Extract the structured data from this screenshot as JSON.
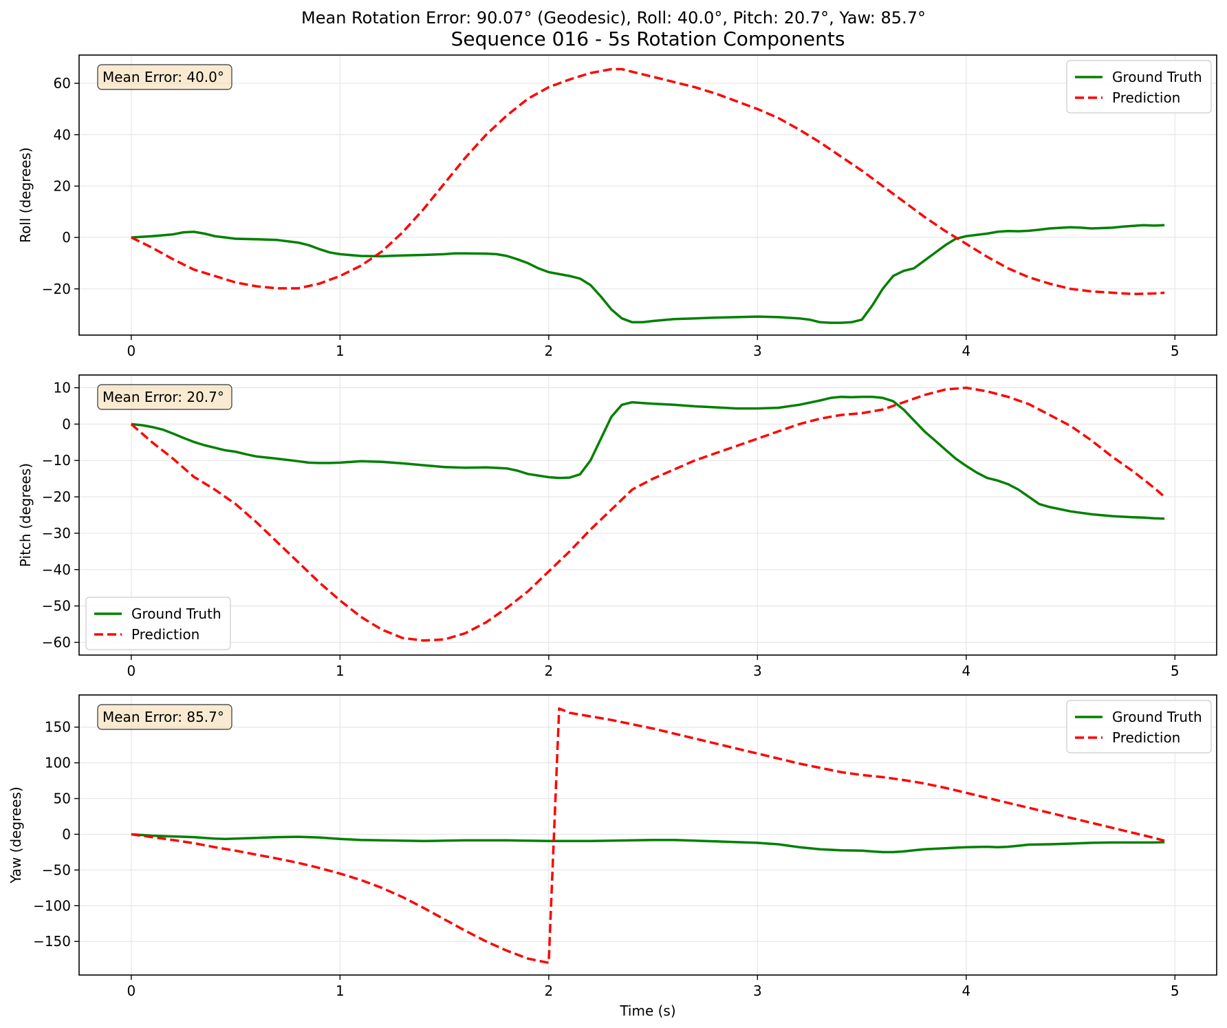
{
  "suptitle": "Mean Rotation Error: 90.07° (Geodesic), Roll: 40.0°, Pitch: 20.7°, Yaw: 85.7°",
  "title": "Sequence 016 - 5s Rotation Components",
  "xlabel": "Time (s)",
  "colors": {
    "ground_truth": "#008000",
    "prediction": "#ff0000",
    "error_box_fill": "#f5deb3"
  },
  "chart_data": [
    {
      "type": "line",
      "ylabel": "Roll (degrees)",
      "annotation": "Mean Error: 40.0°",
      "legend_location": "upper right",
      "xlim": [
        -0.25,
        5.2
      ],
      "ylim": [
        -38,
        71
      ],
      "xticks": [
        0,
        1,
        2,
        3,
        4,
        5
      ],
      "yticks": [
        -20,
        0,
        20,
        40,
        60
      ],
      "grid": true,
      "series": [
        {
          "name": "Ground Truth",
          "style": "solid",
          "x": [
            0,
            0.1,
            0.2,
            0.25,
            0.3,
            0.35,
            0.4,
            0.5,
            0.6,
            0.7,
            0.8,
            0.85,
            0.9,
            0.95,
            1.0,
            1.1,
            1.2,
            1.3,
            1.4,
            1.5,
            1.55,
            1.6,
            1.7,
            1.75,
            1.8,
            1.85,
            1.9,
            1.95,
            2.0,
            2.1,
            2.15,
            2.2,
            2.25,
            2.3,
            2.35,
            2.4,
            2.45,
            2.5,
            2.6,
            2.7,
            2.8,
            2.9,
            3.0,
            3.1,
            3.2,
            3.25,
            3.3,
            3.35,
            3.4,
            3.45,
            3.5,
            3.55,
            3.6,
            3.65,
            3.7,
            3.75,
            3.8,
            3.85,
            3.9,
            3.95,
            4.0,
            4.1,
            4.15,
            4.2,
            4.25,
            4.3,
            4.35,
            4.4,
            4.5,
            4.55,
            4.6,
            4.7,
            4.75,
            4.8,
            4.85,
            4.9,
            4.95
          ],
          "y": [
            0,
            0.5,
            1.2,
            2.0,
            2.2,
            1.5,
            0.5,
            -0.5,
            -0.7,
            -1.0,
            -2.0,
            -3.0,
            -4.5,
            -5.8,
            -6.5,
            -7.2,
            -7.3,
            -7.0,
            -6.8,
            -6.5,
            -6.2,
            -6.2,
            -6.3,
            -6.5,
            -7.2,
            -8.5,
            -10.0,
            -12.0,
            -13.5,
            -15.0,
            -16.0,
            -18.5,
            -23.0,
            -28.0,
            -31.5,
            -33.0,
            -33.0,
            -32.5,
            -31.8,
            -31.5,
            -31.2,
            -31.0,
            -30.8,
            -31.0,
            -31.5,
            -32.0,
            -33.0,
            -33.2,
            -33.2,
            -33.0,
            -32.0,
            -26.5,
            -20.0,
            -15.0,
            -13.0,
            -12.0,
            -9.0,
            -6.0,
            -3.0,
            -0.5,
            0.5,
            1.5,
            2.2,
            2.5,
            2.4,
            2.6,
            3.0,
            3.5,
            4.0,
            3.8,
            3.5,
            3.8,
            4.2,
            4.5,
            4.8,
            4.6,
            4.8
          ]
        },
        {
          "name": "Prediction",
          "style": "dashed",
          "x": [
            0,
            0.1,
            0.2,
            0.3,
            0.4,
            0.5,
            0.6,
            0.7,
            0.8,
            0.9,
            1.0,
            1.1,
            1.2,
            1.3,
            1.4,
            1.5,
            1.6,
            1.7,
            1.8,
            1.9,
            2.0,
            2.1,
            2.2,
            2.3,
            2.35,
            2.4,
            2.5,
            2.6,
            2.7,
            2.8,
            2.9,
            3.0,
            3.1,
            3.2,
            3.3,
            3.4,
            3.5,
            3.6,
            3.7,
            3.8,
            3.9,
            4.0,
            4.1,
            4.2,
            4.3,
            4.4,
            4.5,
            4.6,
            4.7,
            4.8,
            4.9,
            4.95
          ],
          "y": [
            0,
            -4,
            -8.5,
            -12.5,
            -15,
            -17.5,
            -19,
            -19.8,
            -19.8,
            -18,
            -15,
            -11,
            -5.5,
            2,
            11,
            21,
            31,
            40,
            47.5,
            54,
            58.5,
            61.5,
            64,
            65.5,
            65.5,
            64.5,
            62.5,
            60.5,
            58.5,
            56,
            53,
            50,
            46.5,
            42,
            37,
            31.5,
            26,
            20,
            14,
            8,
            2.5,
            -2.5,
            -7.5,
            -12,
            -15.5,
            -18,
            -20,
            -21,
            -21.5,
            -22,
            -21.8,
            -21.5
          ]
        }
      ]
    },
    {
      "type": "line",
      "ylabel": "Pitch (degrees)",
      "annotation": "Mean Error: 20.7°",
      "legend_location": "lower left",
      "xlim": [
        -0.25,
        5.2
      ],
      "ylim": [
        -63.5,
        13.5
      ],
      "xticks": [
        0,
        1,
        2,
        3,
        4,
        5
      ],
      "yticks": [
        -60,
        -50,
        -40,
        -30,
        -20,
        -10,
        0,
        10
      ],
      "grid": true,
      "series": [
        {
          "name": "Ground Truth",
          "style": "solid",
          "x": [
            0,
            0.05,
            0.1,
            0.15,
            0.2,
            0.25,
            0.3,
            0.35,
            0.4,
            0.45,
            0.5,
            0.55,
            0.6,
            0.65,
            0.7,
            0.8,
            0.85,
            0.9,
            0.95,
            1.0,
            1.1,
            1.2,
            1.3,
            1.4,
            1.5,
            1.6,
            1.7,
            1.8,
            1.85,
            1.9,
            2.0,
            2.05,
            2.1,
            2.15,
            2.2,
            2.25,
            2.3,
            2.35,
            2.4,
            2.45,
            2.5,
            2.6,
            2.7,
            2.8,
            2.9,
            3.0,
            3.1,
            3.2,
            3.3,
            3.35,
            3.4,
            3.45,
            3.5,
            3.55,
            3.6,
            3.65,
            3.7,
            3.75,
            3.8,
            3.85,
            3.9,
            3.95,
            4.0,
            4.05,
            4.1,
            4.15,
            4.2,
            4.25,
            4.3,
            4.35,
            4.4,
            4.5,
            4.6,
            4.7,
            4.8,
            4.85,
            4.9,
            4.95
          ],
          "y": [
            0,
            -0.3,
            -0.8,
            -1.5,
            -2.6,
            -3.8,
            -4.9,
            -5.8,
            -6.5,
            -7.2,
            -7.6,
            -8.3,
            -8.9,
            -9.2,
            -9.5,
            -10.2,
            -10.6,
            -10.7,
            -10.7,
            -10.6,
            -10.2,
            -10.4,
            -10.8,
            -11.3,
            -11.8,
            -12.0,
            -11.9,
            -12.2,
            -12.8,
            -13.7,
            -14.6,
            -14.8,
            -14.7,
            -13.8,
            -10.0,
            -4.0,
            2.0,
            5.3,
            6.0,
            5.8,
            5.6,
            5.3,
            4.9,
            4.6,
            4.3,
            4.3,
            4.5,
            5.3,
            6.5,
            7.2,
            7.5,
            7.4,
            7.5,
            7.5,
            7.2,
            6.3,
            4.0,
            1.0,
            -2.0,
            -4.5,
            -7.0,
            -9.5,
            -11.5,
            -13.3,
            -14.8,
            -15.5,
            -16.5,
            -18.0,
            -20.0,
            -22.0,
            -22.8,
            -24.0,
            -24.8,
            -25.3,
            -25.6,
            -25.7,
            -25.9,
            -26.0
          ]
        },
        {
          "name": "Prediction",
          "style": "dashed",
          "x": [
            0,
            0.1,
            0.2,
            0.3,
            0.4,
            0.5,
            0.6,
            0.7,
            0.8,
            0.9,
            1.0,
            1.1,
            1.2,
            1.3,
            1.4,
            1.5,
            1.6,
            1.7,
            1.8,
            1.9,
            2.0,
            2.1,
            2.2,
            2.3,
            2.4,
            2.5,
            2.6,
            2.7,
            2.8,
            2.9,
            3.0,
            3.1,
            3.2,
            3.3,
            3.4,
            3.5,
            3.6,
            3.7,
            3.8,
            3.9,
            4.0,
            4.1,
            4.2,
            4.3,
            4.4,
            4.5,
            4.6,
            4.7,
            4.8,
            4.9,
            4.95
          ],
          "y": [
            0,
            -5,
            -9.5,
            -14.5,
            -18,
            -22,
            -27,
            -32.5,
            -38,
            -43.5,
            -48.5,
            -53,
            -56.5,
            -58.8,
            -59.5,
            -59.2,
            -57.5,
            -54.5,
            -50.5,
            -46,
            -40.5,
            -35,
            -29,
            -23.5,
            -18,
            -15,
            -12.5,
            -10,
            -8,
            -6,
            -4,
            -2,
            0,
            1.5,
            2.5,
            3,
            4,
            6,
            8,
            9.5,
            10,
            9,
            7.5,
            5.5,
            2.5,
            -0.5,
            -4.5,
            -9,
            -13,
            -17.5,
            -20
          ]
        }
      ]
    },
    {
      "type": "line",
      "ylabel": "Yaw (degrees)",
      "annotation": "Mean Error: 85.7°",
      "legend_location": "upper right",
      "xlim": [
        -0.25,
        5.2
      ],
      "ylim": [
        -197,
        195
      ],
      "xticks": [
        0,
        1,
        2,
        3,
        4,
        5
      ],
      "yticks": [
        -150,
        -100,
        -50,
        0,
        50,
        100,
        150
      ],
      "grid": true,
      "series": [
        {
          "name": "Ground Truth",
          "style": "solid",
          "x": [
            0,
            0.1,
            0.2,
            0.3,
            0.35,
            0.4,
            0.45,
            0.5,
            0.6,
            0.7,
            0.8,
            0.85,
            0.9,
            1.0,
            1.1,
            1.2,
            1.3,
            1.4,
            1.5,
            1.6,
            1.7,
            1.8,
            1.9,
            2.0,
            2.1,
            2.2,
            2.3,
            2.4,
            2.5,
            2.6,
            2.7,
            2.8,
            2.9,
            3.0,
            3.05,
            3.1,
            3.15,
            3.2,
            3.3,
            3.4,
            3.5,
            3.55,
            3.6,
            3.65,
            3.7,
            3.75,
            3.8,
            3.9,
            4.0,
            4.1,
            4.15,
            4.2,
            4.25,
            4.3,
            4.4,
            4.5,
            4.6,
            4.7,
            4.8,
            4.9,
            4.95
          ],
          "y": [
            0,
            -2,
            -3,
            -4,
            -5,
            -6,
            -6.5,
            -6,
            -5,
            -4,
            -3.5,
            -4,
            -4.5,
            -6.5,
            -8,
            -8.5,
            -9,
            -9.5,
            -9,
            -8.5,
            -8.5,
            -8.5,
            -9,
            -9.5,
            -9.5,
            -9.5,
            -9,
            -8.5,
            -8,
            -8,
            -9,
            -10,
            -11,
            -12,
            -13,
            -14,
            -16,
            -18,
            -21,
            -22.5,
            -23,
            -24,
            -25,
            -25,
            -24,
            -22.5,
            -21,
            -19.5,
            -18,
            -17.5,
            -18,
            -17.5,
            -16,
            -14.5,
            -14,
            -13,
            -12,
            -11.5,
            -11.5,
            -11.5,
            -11
          ]
        },
        {
          "name": "Prediction",
          "style": "dashed",
          "x": [
            0,
            0.1,
            0.2,
            0.3,
            0.4,
            0.5,
            0.6,
            0.7,
            0.8,
            0.9,
            1.0,
            1.1,
            1.2,
            1.3,
            1.4,
            1.5,
            1.6,
            1.7,
            1.8,
            1.9,
            2.0,
            2.05,
            2.1,
            2.2,
            2.3,
            2.4,
            2.5,
            2.6,
            2.7,
            2.8,
            2.9,
            3.0,
            3.1,
            3.2,
            3.3,
            3.4,
            3.5,
            3.6,
            3.7,
            3.8,
            3.9,
            4.0,
            4.1,
            4.2,
            4.3,
            4.4,
            4.5,
            4.6,
            4.7,
            4.8,
            4.9,
            4.95
          ],
          "y": [
            0,
            -4,
            -8,
            -12.5,
            -18,
            -23,
            -28.5,
            -34,
            -40,
            -47,
            -55,
            -64,
            -75,
            -88,
            -103,
            -119,
            -135,
            -150,
            -163,
            -174,
            -180,
            176,
            170,
            165,
            160,
            154,
            148,
            141,
            134,
            127,
            120,
            113,
            106,
            99,
            93,
            87,
            83,
            80,
            76,
            71,
            65,
            58,
            51,
            44,
            37,
            30,
            23,
            16,
            9,
            2,
            -5,
            -9
          ]
        }
      ]
    }
  ]
}
